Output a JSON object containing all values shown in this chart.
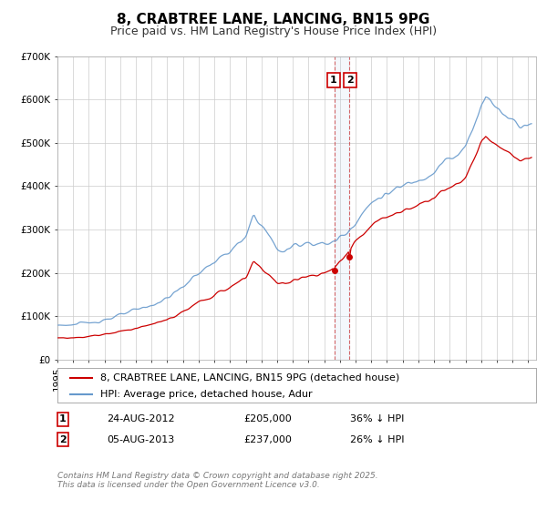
{
  "title": "8, CRABTREE LANE, LANCING, BN15 9PG",
  "subtitle": "Price paid vs. HM Land Registry's House Price Index (HPI)",
  "ylim": [
    0,
    700000
  ],
  "xlim": [
    1995.0,
    2025.5
  ],
  "yticks": [
    0,
    100000,
    200000,
    300000,
    400000,
    500000,
    600000,
    700000
  ],
  "ytick_labels": [
    "£0",
    "£100K",
    "£200K",
    "£300K",
    "£400K",
    "£500K",
    "£600K",
    "£700K"
  ],
  "xticks": [
    1995,
    1996,
    1997,
    1998,
    1999,
    2000,
    2001,
    2002,
    2003,
    2004,
    2005,
    2006,
    2007,
    2008,
    2009,
    2010,
    2011,
    2012,
    2013,
    2014,
    2015,
    2016,
    2017,
    2018,
    2019,
    2020,
    2021,
    2022,
    2023,
    2024,
    2025
  ],
  "legend_line1": "8, CRABTREE LANE, LANCING, BN15 9PG (detached house)",
  "legend_line2": "HPI: Average price, detached house, Adur",
  "line1_color": "#cc0000",
  "line2_color": "#6699cc",
  "marker_color": "#cc0000",
  "annotation_box_color": "#cc0000",
  "sale1_x": 2012.646,
  "sale1_y": 205000,
  "sale1_date": "24-AUG-2012",
  "sale1_price": "£205,000",
  "sale1_hpi": "36% ↓ HPI",
  "sale2_x": 2013.596,
  "sale2_y": 237000,
  "sale2_date": "05-AUG-2013",
  "sale2_price": "£237,000",
  "sale2_hpi": "26% ↓ HPI",
  "footnote": "Contains HM Land Registry data © Crown copyright and database right 2025.\nThis data is licensed under the Open Government Licence v3.0.",
  "bg_color": "#ffffff",
  "grid_color": "#cccccc",
  "title_fontsize": 11,
  "subtitle_fontsize": 9,
  "tick_fontsize": 7.5,
  "legend_fontsize": 8,
  "footnote_fontsize": 6.5
}
